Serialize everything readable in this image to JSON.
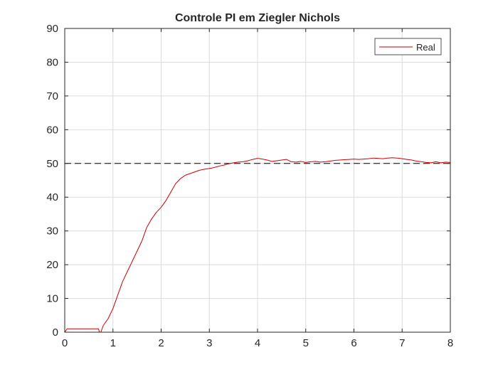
{
  "chart_data": {
    "type": "line",
    "title": "Controle PI em Ziegler Nichols",
    "xlabel": "",
    "ylabel": "",
    "xlim": [
      0,
      8
    ],
    "ylim": [
      0,
      90
    ],
    "x_ticks": [
      0,
      1,
      2,
      3,
      4,
      5,
      6,
      7,
      8
    ],
    "y_ticks": [
      0,
      10,
      20,
      30,
      40,
      50,
      60,
      70,
      80,
      90
    ],
    "grid": true,
    "legend_position": "top-right",
    "reference_line": {
      "y": 50,
      "style": "dashed",
      "color": "#000000"
    },
    "series": [
      {
        "name": "Real",
        "color": "#cc0000",
        "points": [
          [
            0.0,
            0
          ],
          [
            0.05,
            1
          ],
          [
            0.5,
            1
          ],
          [
            0.7,
            1
          ],
          [
            0.72,
            0
          ],
          [
            0.75,
            0
          ],
          [
            0.8,
            2
          ],
          [
            0.9,
            4
          ],
          [
            1.0,
            7
          ],
          [
            1.1,
            11
          ],
          [
            1.2,
            15
          ],
          [
            1.3,
            18
          ],
          [
            1.4,
            21
          ],
          [
            1.5,
            24
          ],
          [
            1.6,
            27
          ],
          [
            1.7,
            31
          ],
          [
            1.8,
            33.5
          ],
          [
            1.9,
            35.5
          ],
          [
            2.0,
            37
          ],
          [
            2.1,
            39
          ],
          [
            2.2,
            41.5
          ],
          [
            2.3,
            44
          ],
          [
            2.4,
            45.5
          ],
          [
            2.5,
            46.5
          ],
          [
            2.6,
            47
          ],
          [
            2.7,
            47.5
          ],
          [
            2.8,
            48
          ],
          [
            2.9,
            48.3
          ],
          [
            3.0,
            48.5
          ],
          [
            3.1,
            48.8
          ],
          [
            3.2,
            49.2
          ],
          [
            3.3,
            49.5
          ],
          [
            3.4,
            49.9
          ],
          [
            3.5,
            50.2
          ],
          [
            3.6,
            50.4
          ],
          [
            3.7,
            50.5
          ],
          [
            3.8,
            50.8
          ],
          [
            3.9,
            51.2
          ],
          [
            4.0,
            51.5
          ],
          [
            4.1,
            51.3
          ],
          [
            4.2,
            51.0
          ],
          [
            4.3,
            50.6
          ],
          [
            4.4,
            50.8
          ],
          [
            4.5,
            51.0
          ],
          [
            4.6,
            51.2
          ],
          [
            4.7,
            50.5
          ],
          [
            4.8,
            50.4
          ],
          [
            4.9,
            50.6
          ],
          [
            5.0,
            50.3
          ],
          [
            5.1,
            50.5
          ],
          [
            5.2,
            50.6
          ],
          [
            5.3,
            50.4
          ],
          [
            5.4,
            50.5
          ],
          [
            5.5,
            50.7
          ],
          [
            5.6,
            50.9
          ],
          [
            5.7,
            51.0
          ],
          [
            5.8,
            51.1
          ],
          [
            5.9,
            51.2
          ],
          [
            6.0,
            51.3
          ],
          [
            6.1,
            51.2
          ],
          [
            6.2,
            51.3
          ],
          [
            6.3,
            51.4
          ],
          [
            6.4,
            51.6
          ],
          [
            6.5,
            51.5
          ],
          [
            6.6,
            51.4
          ],
          [
            6.7,
            51.6
          ],
          [
            6.8,
            51.7
          ],
          [
            6.9,
            51.6
          ],
          [
            7.0,
            51.4
          ],
          [
            7.1,
            51.2
          ],
          [
            7.2,
            51.0
          ],
          [
            7.3,
            50.7
          ],
          [
            7.4,
            50.5
          ],
          [
            7.5,
            50.3
          ],
          [
            7.6,
            50.2
          ],
          [
            7.7,
            50.5
          ],
          [
            7.8,
            50.2
          ],
          [
            7.9,
            50.4
          ],
          [
            8.0,
            50.3
          ]
        ]
      }
    ]
  }
}
